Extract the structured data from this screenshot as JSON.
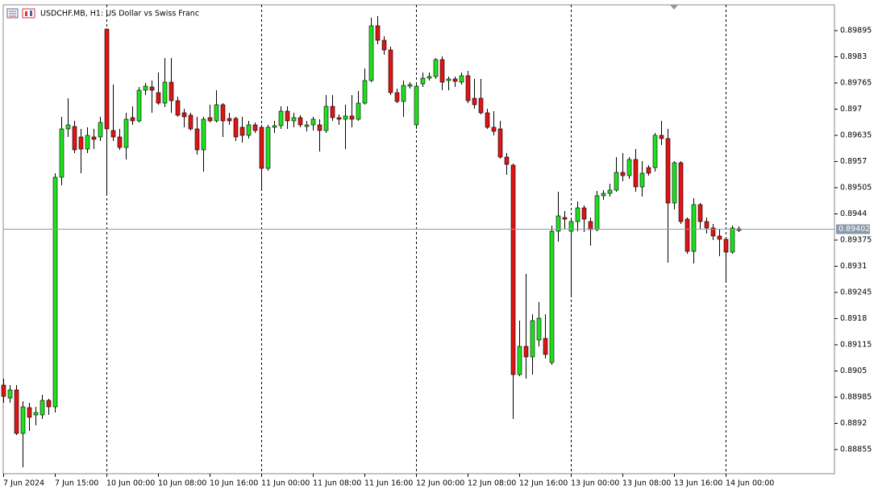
{
  "chart_data": {
    "type": "candlestick",
    "title": "USDCHF.MB, H1:  US Dollar vs Swiss Franc",
    "categories": [
      "7 Jun 2024",
      null,
      null,
      null,
      null,
      null,
      null,
      null,
      "7 Jun 15:00",
      null,
      null,
      null,
      null,
      null,
      null,
      null,
      "10 Jun 00:00",
      null,
      null,
      null,
      null,
      null,
      null,
      null,
      "10 Jun 08:00",
      null,
      null,
      null,
      null,
      null,
      null,
      null,
      "10 Jun 16:00",
      null,
      null,
      null,
      null,
      null,
      null,
      null,
      "11 Jun 00:00",
      null,
      null,
      null,
      null,
      null,
      null,
      null,
      "11 Jun 08:00",
      null,
      null,
      null,
      null,
      null,
      null,
      null,
      "11 Jun 16:00",
      null,
      null,
      null,
      null,
      null,
      null,
      null,
      "12 Jun 00:00",
      null,
      null,
      null,
      null,
      null,
      null,
      null,
      "12 Jun 08:00",
      null,
      null,
      null,
      null,
      null,
      null,
      null,
      "12 Jun 16:00",
      null,
      null,
      null,
      null,
      null,
      null,
      null,
      "13 Jun 00:00",
      null,
      null,
      null,
      null,
      null,
      null,
      null,
      "13 Jun 08:00",
      null,
      null,
      null,
      null,
      null,
      null,
      null,
      "13 Jun 16:00",
      null,
      null,
      null,
      null,
      null,
      null,
      null,
      "14 Jun 00:00",
      null,
      null
    ],
    "open": [
      0.89015,
      0.88983,
      0.89003,
      0.88895,
      0.88959,
      0.88941,
      0.88941,
      0.88977,
      0.88961,
      0.89531,
      0.89651,
      0.89657,
      0.89631,
      0.89601,
      0.89631,
      0.89631,
      0.89899,
      0.89647,
      0.89631,
      0.89605,
      0.89679,
      0.89671,
      0.89747,
      0.89755,
      0.89741,
      0.89715,
      0.89767,
      0.89721,
      0.89691,
      0.89685,
      0.89651,
      0.89599,
      0.89679,
      0.89671,
      0.89711,
      0.89677,
      0.89677,
      0.89655,
      0.89635,
      0.89661,
      0.89655,
      0.89553,
      0.89655,
      0.89659,
      0.89695,
      0.89671,
      0.89679,
      0.89657,
      0.89661,
      0.89661,
      0.89647,
      0.89707,
      0.89679,
      0.89675,
      0.89683,
      0.89675,
      0.89715,
      0.89771,
      0.89907,
      0.89871,
      0.89847,
      0.89741,
      0.89719,
      0.89757,
      0.89661,
      0.89763,
      0.89777,
      0.89781,
      0.89823,
      0.89771,
      0.89775,
      0.89767,
      0.89783,
      0.89727,
      0.89727,
      0.89691,
      0.89655,
      0.89651,
      0.89581,
      0.89561,
      0.89041,
      0.89111,
      0.89085,
      0.89127,
      0.89131,
      0.89071,
      0.89397,
      0.89431,
      0.89397,
      0.89421,
      0.89455,
      0.89421,
      0.89401,
      0.89485,
      0.89491,
      0.89499,
      0.89543,
      0.89535,
      0.89575,
      0.89507,
      0.89555,
      0.89555,
      0.89635,
      0.89627,
      0.89467,
      0.89567,
      0.89427,
      0.89347,
      0.89463,
      0.89421,
      0.89405,
      0.89385,
      0.89377,
      0.89345,
      0.89403
    ],
    "high": [
      0.89031,
      0.89015,
      0.89015,
      0.88975,
      0.88971,
      0.88961,
      0.88991,
      0.88981,
      0.89541,
      0.89681,
      0.89727,
      0.89671,
      0.89651,
      0.89655,
      0.89651,
      0.89681,
      0.89899,
      0.89761,
      0.89651,
      0.89691,
      0.89707,
      0.89755,
      0.89765,
      0.89771,
      0.89791,
      0.89827,
      0.89827,
      0.89731,
      0.89701,
      0.89691,
      0.89681,
      0.89681,
      0.89711,
      0.89747,
      0.89715,
      0.89691,
      0.89681,
      0.89681,
      0.89671,
      0.89667,
      0.89661,
      0.89661,
      0.89671,
      0.89707,
      0.89707,
      0.89691,
      0.89685,
      0.89671,
      0.89681,
      0.89675,
      0.89735,
      0.89735,
      0.89687,
      0.89711,
      0.89735,
      0.89745,
      0.89801,
      0.89927,
      0.89931,
      0.89881,
      0.89855,
      0.89751,
      0.89771,
      0.89767,
      0.89761,
      0.89791,
      0.89791,
      0.89827,
      0.89831,
      0.89781,
      0.89781,
      0.89791,
      0.89795,
      0.89775,
      0.89775,
      0.89701,
      0.89695,
      0.89671,
      0.89591,
      0.89565,
      0.89175,
      0.89291,
      0.89191,
      0.89221,
      0.89191,
      0.89411,
      0.89495,
      0.89447,
      0.89431,
      0.89471,
      0.89461,
      0.89431,
      0.89497,
      0.89499,
      0.89515,
      0.89581,
      0.89591,
      0.89581,
      0.89601,
      0.89571,
      0.89561,
      0.89641,
      0.89671,
      0.89651,
      0.89571,
      0.89571,
      0.89431,
      0.89479,
      0.89467,
      0.89431,
      0.89415,
      0.89401,
      0.89381,
      0.89411,
      0.89409
    ],
    "low": [
      0.88971,
      0.88971,
      0.88891,
      0.88811,
      0.88901,
      0.88915,
      0.88931,
      0.88941,
      0.88947,
      0.89511,
      0.89631,
      0.89591,
      0.89541,
      0.89591,
      0.89601,
      0.89621,
      0.89487,
      0.89621,
      0.89599,
      0.89575,
      0.89661,
      0.89667,
      0.89735,
      0.89691,
      0.89711,
      0.89705,
      0.89691,
      0.89681,
      0.89655,
      0.89647,
      0.89587,
      0.89545,
      0.89667,
      0.89667,
      0.89631,
      0.89661,
      0.89621,
      0.89617,
      0.89627,
      0.89641,
      0.89499,
      0.89547,
      0.89641,
      0.89651,
      0.89651,
      0.89655,
      0.89655,
      0.89645,
      0.89647,
      0.89595,
      0.89641,
      0.89671,
      0.89661,
      0.89601,
      0.89655,
      0.89671,
      0.89711,
      0.89767,
      0.89861,
      0.89835,
      0.89735,
      0.89715,
      0.89681,
      0.89751,
      0.89651,
      0.89755,
      0.89771,
      0.89775,
      0.89747,
      0.89747,
      0.89755,
      0.89761,
      0.89715,
      0.89701,
      0.89687,
      0.89651,
      0.89635,
      0.89577,
      0.89537,
      0.88931,
      0.89037,
      0.89031,
      0.89041,
      0.89111,
      0.89081,
      0.89065,
      0.89371,
      0.89401,
      0.89237,
      0.89397,
      0.89395,
      0.89361,
      0.89397,
      0.89475,
      0.89483,
      0.89495,
      0.89521,
      0.89527,
      0.89495,
      0.89483,
      0.89535,
      0.89545,
      0.89611,
      0.89319,
      0.89451,
      0.89415,
      0.89341,
      0.89317,
      0.89401,
      0.89391,
      0.89375,
      0.89335,
      0.89271,
      0.89341,
      0.89395
    ],
    "close": [
      0.88987,
      0.89003,
      0.88895,
      0.88961,
      0.88935,
      0.88947,
      0.88977,
      0.88961,
      0.89531,
      0.89651,
      0.89661,
      0.89599,
      0.89601,
      0.89635,
      0.89625,
      0.89667,
      0.89651,
      0.89631,
      0.89605,
      0.89675,
      0.89671,
      0.89747,
      0.89757,
      0.89747,
      0.89715,
      0.89767,
      0.89721,
      0.89685,
      0.89681,
      0.89651,
      0.89599,
      0.89675,
      0.89671,
      0.89711,
      0.89671,
      0.89671,
      0.89631,
      0.89635,
      0.89661,
      0.89647,
      0.89553,
      0.89655,
      0.89659,
      0.89695,
      0.89671,
      0.89679,
      0.89661,
      0.89661,
      0.89675,
      0.89647,
      0.89707,
      0.89679,
      0.89675,
      0.89683,
      0.89675,
      0.89715,
      0.89771,
      0.89907,
      0.89871,
      0.89847,
      0.89741,
      0.89719,
      0.89759,
      0.89761,
      0.89757,
      0.89777,
      0.89781,
      0.89823,
      0.89767,
      0.89775,
      0.89769,
      0.89783,
      0.89721,
      0.89711,
      0.89691,
      0.89655,
      0.89645,
      0.89581,
      0.89563,
      0.89041,
      0.89111,
      0.89085,
      0.89175,
      0.89181,
      0.89091,
      0.89397,
      0.89435,
      0.89427,
      0.89421,
      0.89455,
      0.89427,
      0.89401,
      0.89485,
      0.89491,
      0.89499,
      0.89543,
      0.89535,
      0.89575,
      0.89507,
      0.89541,
      0.89541,
      0.89635,
      0.89627,
      0.89467,
      0.89567,
      0.89421,
      0.89347,
      0.89463,
      0.89421,
      0.89405,
      0.89385,
      0.89377,
      0.89345,
      0.89405,
      0.89399
    ],
    "up_color": "#1ee01e",
    "down_color": "#e01414",
    "last_price": 0.89402,
    "ylim": [
      0.88795,
      0.89959
    ],
    "yticks": [
      0.89895,
      0.8983,
      0.89765,
      0.897,
      0.89635,
      0.8957,
      0.89505,
      0.8944,
      0.89375,
      0.8931,
      0.89245,
      0.8918,
      0.89115,
      0.8905,
      0.88985,
      0.8892,
      0.88855
    ]
  }
}
